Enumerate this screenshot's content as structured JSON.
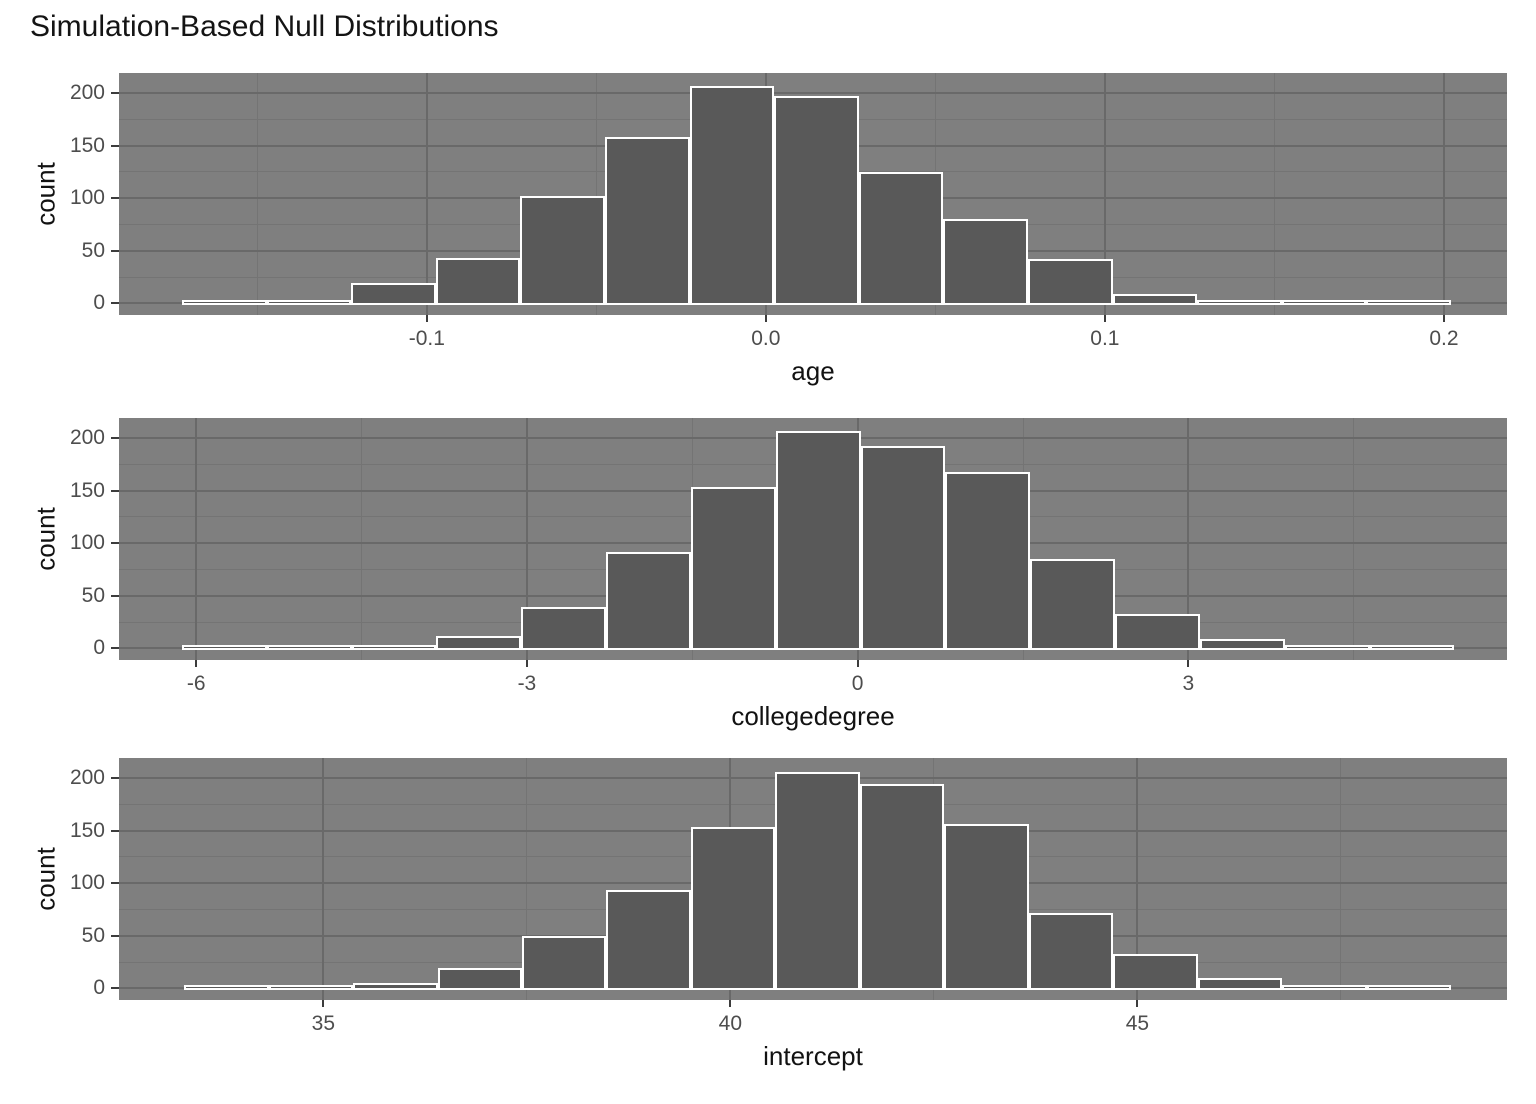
{
  "title": "Simulation-Based Null Distributions",
  "y_axis_label": "count",
  "colors": {
    "page_bg": "#ffffff",
    "panel_bg": "#7f7f7f",
    "grid_major": "#696969",
    "grid_minor": "#747474",
    "bar_fill": "#595959",
    "bar_stroke": "#ffffff",
    "tick_label": "#4d4d4d",
    "tick_mark": "#3c3c3c",
    "axis_title": "#121212",
    "title_color": "#141414"
  },
  "chart_data": [
    {
      "type": "bar",
      "subtype": "histogram",
      "xlabel": "age",
      "ylabel": "count",
      "bin_start": -0.1722,
      "bin_width": 0.02495,
      "counts": [
        1,
        2,
        19,
        43,
        102,
        158,
        207,
        197,
        125,
        80,
        42,
        9,
        3,
        1,
        1
      ],
      "xlim": [
        -0.1908,
        0.2186
      ],
      "ylim": [
        -11,
        219
      ],
      "x_ticks": [
        -0.1,
        0,
        0.1,
        0.2
      ],
      "x_tick_labels": [
        "-0.1",
        "0.0",
        "0.1",
        "0.2"
      ],
      "x_minor_ticks": [
        -0.15,
        -0.05,
        0.05,
        0.15
      ],
      "y_ticks": [
        0,
        50,
        100,
        150,
        200
      ],
      "y_tick_labels": [
        "0",
        "50",
        "100",
        "150",
        "200"
      ],
      "y_minor_ticks": [
        25,
        75,
        125,
        175
      ],
      "grid": true,
      "legend": "none"
    },
    {
      "type": "bar",
      "subtype": "histogram",
      "xlabel": "collegedegree",
      "ylabel": "count",
      "bin_start": -6.13,
      "bin_width": 0.7695,
      "counts": [
        1,
        0,
        1,
        12,
        39,
        92,
        153,
        207,
        192,
        168,
        85,
        33,
        9,
        1,
        2
      ],
      "xlim": [
        -6.7,
        5.89
      ],
      "ylim": [
        -11,
        219
      ],
      "x_ticks": [
        -6,
        -3,
        0,
        3
      ],
      "x_tick_labels": [
        "-6",
        "-3",
        "0",
        "3"
      ],
      "x_minor_ticks": [
        -4.5,
        -1.5,
        1.5,
        4.5
      ],
      "y_ticks": [
        0,
        50,
        100,
        150,
        200
      ],
      "y_tick_labels": [
        "0",
        "50",
        "100",
        "150",
        "200"
      ],
      "y_minor_ticks": [
        25,
        75,
        125,
        175
      ],
      "grid": true,
      "legend": "none"
    },
    {
      "type": "bar",
      "subtype": "histogram",
      "xlabel": "intercept",
      "ylabel": "count",
      "bin_start": 33.29,
      "bin_width": 1.0376,
      "counts": [
        1,
        1,
        5,
        19,
        50,
        94,
        153,
        206,
        194,
        156,
        72,
        33,
        10,
        2,
        1
      ],
      "xlim": [
        32.49,
        49.54
      ],
      "ylim": [
        -11,
        219
      ],
      "x_ticks": [
        35,
        40,
        45
      ],
      "x_tick_labels": [
        "35",
        "40",
        "45"
      ],
      "x_minor_ticks": [
        37.5,
        42.5,
        47.5
      ],
      "y_ticks": [
        0,
        50,
        100,
        150,
        200
      ],
      "y_tick_labels": [
        "0",
        "50",
        "100",
        "150",
        "200"
      ],
      "y_minor_ticks": [
        25,
        75,
        125,
        175
      ],
      "grid": true,
      "legend": "none"
    }
  ]
}
